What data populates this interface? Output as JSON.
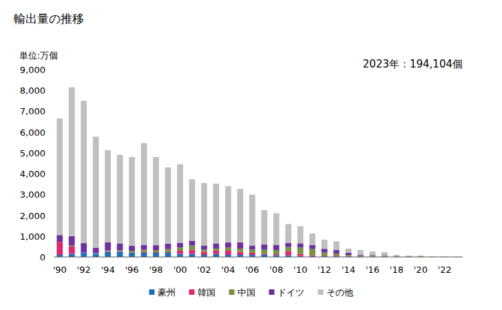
{
  "chart_data": {
    "type": "bar",
    "stacked": true,
    "title": "輸出量の推移",
    "y_label": "単位:万個",
    "annotation": "2023年：194,104個",
    "categories": [
      "'90",
      null,
      "'92",
      null,
      "'94",
      null,
      "'96",
      null,
      "'98",
      null,
      "'00",
      null,
      "'02",
      null,
      "'04",
      null,
      "'06",
      null,
      "'08",
      null,
      "'10",
      null,
      "'12",
      null,
      "'14",
      null,
      "'16",
      null,
      "'18",
      null,
      "'20",
      null,
      "'22",
      null
    ],
    "ylim": [
      0,
      9000
    ],
    "yticks": [
      0,
      {
        "value": 1000,
        "label": "1,000"
      },
      {
        "value": 2000,
        "label": "2,000"
      },
      {
        "value": 3000,
        "label": "3,000"
      },
      {
        "value": 4000,
        "label": "4,000"
      },
      {
        "value": 5000,
        "label": "5,000"
      },
      {
        "value": 6000,
        "label": "6,000"
      },
      {
        "value": 7000,
        "label": "7,000"
      },
      {
        "value": 8000,
        "label": "8,000"
      },
      {
        "value": 9000,
        "label": "9,000"
      }
    ],
    "grid": false,
    "legend": "bottom",
    "series": [
      {
        "name": "豪州",
        "color": "#1f6fc0",
        "values": [
          100,
          150,
          200,
          150,
          250,
          250,
          200,
          200,
          200,
          200,
          150,
          150,
          100,
          150,
          100,
          100,
          100,
          100,
          80,
          80,
          50,
          30,
          30,
          30,
          30,
          30,
          20,
          20,
          10,
          5,
          5,
          2,
          2,
          1.41
        ]
      },
      {
        "name": "韓国",
        "color": "#e0266f",
        "values": [
          620,
          350,
          20,
          0,
          30,
          20,
          20,
          50,
          30,
          30,
          150,
          200,
          150,
          150,
          200,
          150,
          100,
          50,
          50,
          200,
          100,
          50,
          30,
          30,
          20,
          10,
          10,
          10,
          0,
          0,
          0,
          0,
          0,
          0
        ]
      },
      {
        "name": "中国",
        "color": "#77933c",
        "values": [
          0,
          50,
          0,
          30,
          30,
          50,
          80,
          100,
          100,
          150,
          150,
          200,
          100,
          100,
          150,
          150,
          150,
          200,
          200,
          200,
          300,
          300,
          150,
          100,
          50,
          30,
          40,
          30,
          40,
          40,
          40,
          10,
          10,
          5
        ]
      },
      {
        "name": "ドイツ",
        "color": "#7030a0",
        "values": [
          330,
          450,
          450,
          250,
          400,
          330,
          230,
          230,
          230,
          250,
          230,
          230,
          200,
          250,
          250,
          300,
          200,
          250,
          250,
          200,
          200,
          200,
          180,
          170,
          100,
          30,
          20,
          20,
          10,
          5,
          5,
          3,
          3,
          3
        ]
      },
      {
        "name": "その他",
        "color": "#bfbfbf",
        "values": [
          5600,
          7150,
          6830,
          5350,
          4420,
          4250,
          4270,
          4890,
          4240,
          3670,
          3770,
          2950,
          3000,
          2870,
          2700,
          2570,
          2440,
          1650,
          1520,
          900,
          830,
          550,
          440,
          420,
          200,
          230,
          170,
          150,
          30,
          20,
          10,
          15,
          15,
          10
        ]
      }
    ]
  }
}
